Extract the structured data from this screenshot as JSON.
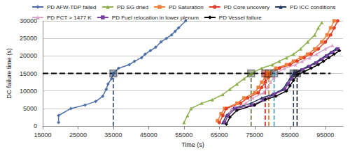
{
  "chart_data": {
    "type": "line",
    "x_label": "Time (s)",
    "y_label": "DC failure time (s)",
    "xlim": [
      15000,
      100000
    ],
    "xticks": [
      15000,
      25000,
      35000,
      45000,
      55000,
      65000,
      75000,
      85000,
      95000
    ],
    "ylim": [
      0,
      30000
    ],
    "yticks": [
      0,
      5000,
      10000,
      15000,
      20000,
      25000,
      30000
    ],
    "grid": true,
    "legend": "top",
    "series": [
      {
        "name": "PD AFW-TDP failed",
        "color": "#4f6fa8",
        "marker": "diamond",
        "x": [
          19500,
          19500,
          23000,
          27000,
          30000,
          32000,
          33000,
          33500,
          34500,
          35000,
          36500,
          39500,
          41000,
          43000,
          44000,
          45500,
          47000,
          48500,
          50000,
          51500,
          52500,
          53500,
          55500
        ],
        "values": [
          1000,
          3000,
          5000,
          6000,
          7000,
          8500,
          10500,
          12000,
          13500,
          15000,
          16500,
          17500,
          18500,
          19500,
          20500,
          21500,
          22500,
          24000,
          25000,
          26000,
          27000,
          28000,
          30000
        ]
      },
      {
        "name": "PD SG dried",
        "color": "#8db04a",
        "marker": "triangle",
        "x": [
          55000,
          56000,
          57000,
          60000,
          63000,
          66000,
          68000,
          70000,
          72000,
          74000,
          77000,
          80000,
          82000,
          84000,
          86000,
          88000,
          90000,
          92000,
          93000,
          94000
        ],
        "values": [
          1000,
          3000,
          5000,
          6500,
          7500,
          9000,
          10500,
          12000,
          13500,
          15000,
          16500,
          17500,
          18500,
          19500,
          20500,
          22000,
          24000,
          26000,
          28000,
          29500
        ]
      },
      {
        "name": "PD Saturation",
        "color": "#f07f3c",
        "marker": "square",
        "x": [
          64500,
          65500,
          66500,
          70000,
          72000,
          75000,
          76000,
          77000,
          78000,
          78500,
          81000,
          84000,
          86000,
          88000,
          90000,
          92000,
          94000,
          95500,
          96500,
          97500
        ],
        "values": [
          1500,
          3500,
          5000,
          6500,
          8000,
          9500,
          11000,
          12500,
          14000,
          15000,
          16500,
          17500,
          18500,
          19500,
          20500,
          22000,
          24000,
          26000,
          28000,
          30000
        ]
      },
      {
        "name": "PD Core uncovery",
        "color": "#e0402a",
        "marker": "circle",
        "x": [
          65000,
          66000,
          67000,
          71000,
          73000,
          76000,
          77000,
          78000,
          79000,
          79500,
          82000,
          85000,
          87000,
          89000,
          91000,
          93000,
          95000,
          96500,
          97500,
          98500
        ],
        "values": [
          1000,
          3000,
          5000,
          6500,
          8000,
          9500,
          11000,
          12500,
          14000,
          15000,
          16500,
          17500,
          18500,
          19500,
          20500,
          22000,
          24000,
          26000,
          28000,
          30000
        ]
      },
      {
        "name": "PD ICC conditions",
        "color": "#1f3864",
        "marker": "triangle",
        "x": [
          66000,
          67000,
          69000,
          74000,
          77000,
          80000,
          83000,
          84000,
          85000,
          86000,
          88000,
          90000,
          92000,
          93500,
          95000,
          96500,
          98000
        ],
        "values": [
          1000,
          3000,
          5000,
          6500,
          8000,
          9000,
          10500,
          12000,
          13500,
          15000,
          16000,
          17000,
          18000,
          19000,
          20000,
          21000,
          22000
        ]
      },
      {
        "name": "PD PCT > 1477 K",
        "color": "#d9a3c8",
        "marker": "triangle",
        "x": [
          66500,
          67500,
          68500,
          72500,
          74500,
          77500,
          78500,
          79500,
          80500,
          81000,
          83500,
          86500,
          88500,
          90500,
          92500,
          95000,
          97000
        ],
        "values": [
          1000,
          3000,
          5000,
          6500,
          8000,
          9500,
          11000,
          12500,
          14000,
          15000,
          16500,
          17500,
          18500,
          19500,
          20500,
          22000,
          23000
        ]
      },
      {
        "name": "PD Fuel relocation in lower plenum",
        "color": "#7b3fa0",
        "marker": "square",
        "x": [
          66500,
          67500,
          69500,
          74500,
          77500,
          80500,
          83500,
          84500,
          85500,
          86500,
          88500,
          90500,
          92500,
          94000,
          95500,
          97000,
          98500
        ],
        "values": [
          1000,
          3000,
          5000,
          6000,
          7500,
          9000,
          10500,
          12000,
          13500,
          15000,
          16000,
          17000,
          18000,
          19000,
          20000,
          21000,
          22000
        ]
      },
      {
        "name": "PD Vessel failure",
        "color": "#000000",
        "marker": "diamond",
        "x": [
          67000,
          68000,
          70000,
          75000,
          78000,
          81000,
          84000,
          85000,
          86000,
          87000,
          89000,
          91000,
          93000,
          94500,
          96000,
          97500,
          99000
        ],
        "values": [
          500,
          2500,
          4500,
          6000,
          7500,
          8500,
          10000,
          11500,
          13000,
          14500,
          15500,
          16500,
          17500,
          18500,
          19500,
          20500,
          21500
        ]
      }
    ],
    "reference": {
      "y": 15000,
      "x_end": 96500,
      "lines": [
        {
          "x": 35000,
          "color": "#1f3864"
        },
        {
          "x": 74000,
          "color": "#4f6228"
        },
        {
          "x": 78000,
          "color": "#c00000"
        },
        {
          "x": 79000,
          "color": "#e36c09"
        },
        {
          "x": 80500,
          "color": "#31859c"
        },
        {
          "x": 86000,
          "color": "#1f3864"
        },
        {
          "x": 87000,
          "color": "#000000"
        }
      ]
    }
  }
}
